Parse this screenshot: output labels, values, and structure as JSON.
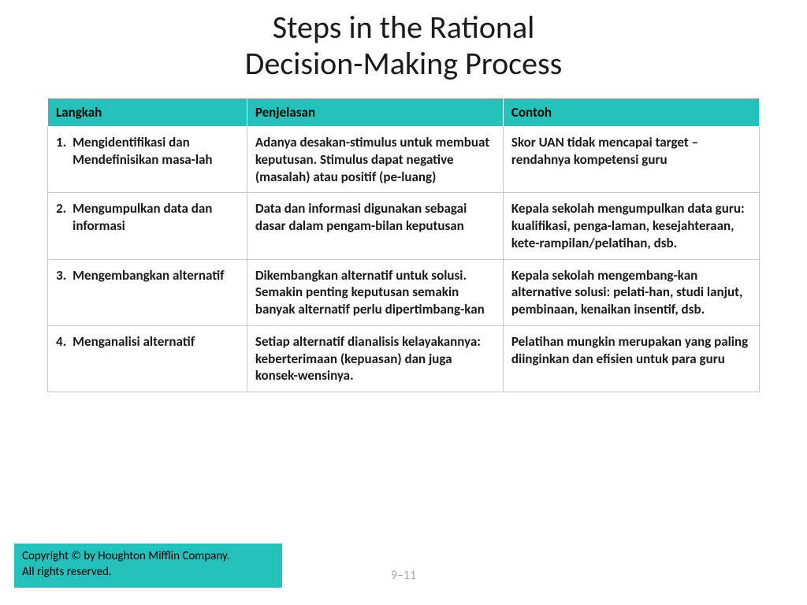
{
  "title_line1": "Steps in the Rational",
  "title_line2": "Decision-Making Process",
  "table": {
    "headers": [
      "Langkah",
      "Penjelasan",
      "Contoh"
    ],
    "rows": [
      {
        "num": "1.",
        "step": "Mengidentifikasi dan Mendefinisikan masa-lah",
        "desc": "Adanya desakan-stimulus untuk membuat keputusan. Stimulus dapat negative (masalah) atau positif (pe-luang)",
        "example": "Skor UAN tidak mencapai target – rendahnya kompetensi guru"
      },
      {
        "num": "2.",
        "step": "Mengumpulkan data dan informasi",
        "desc": "Data dan informasi digunakan sebagai dasar dalam pengam-bilan keputusan",
        "example": "Kepala sekolah mengumpulkan data guru: kualifikasi, penga-laman, kesejahteraan, kete-rampilan/pelatihan, dsb."
      },
      {
        "num": "3.",
        "step": "Mengembangkan alternatif",
        "desc": "Dikembangkan alternatif untuk solusi. Semakin penting keputusan semakin banyak alternatif perlu dipertimbang-kan",
        "example": "Kepala sekolah mengembang-kan alternative solusi: pelati-han, studi lanjut, pembinaan, kenaikan insentif, dsb."
      },
      {
        "num": "4.",
        "step": "Menganalisi alternatif",
        "desc": "Setiap alternatif dianalisis kelayakannya: keberterimaan (kepuasan) dan juga konsek-wensinya.",
        "example": "Pelatihan mungkin merupakan yang paling diinginkan dan efisien untuk para guru"
      }
    ]
  },
  "footer_line1": "Copyright © by Houghton Mifflin Company.",
  "footer_line2": "All rights reserved.",
  "page_number": "9–11",
  "colors": {
    "header_bg": "#24c0bb",
    "border": "#c8c8c8",
    "text": "#1a1a1a",
    "pagenum": "#a8a8a8"
  }
}
